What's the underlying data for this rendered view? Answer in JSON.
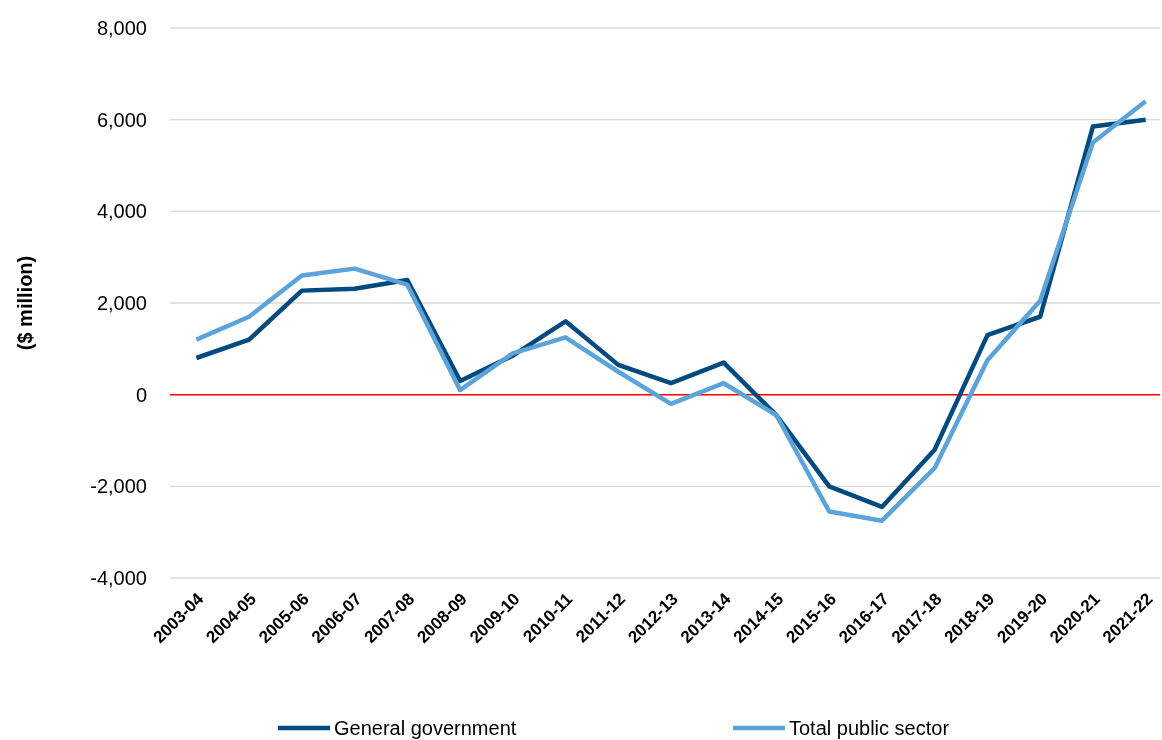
{
  "chart_data": {
    "type": "line",
    "ylabel": "($ million)",
    "categories": [
      "2003-04",
      "2004-05",
      "2005-06",
      "2006-07",
      "2007-08",
      "2008-09",
      "2009-10",
      "2010-11",
      "2011-12",
      "2012-13",
      "2013-14",
      "2014-15",
      "2015-16",
      "2016-17",
      "2017-18",
      "2018-19",
      "2019-20",
      "2020-21",
      "2021-22"
    ],
    "series": [
      {
        "name": "General government",
        "color": "#004a7f",
        "values": [
          800,
          1200,
          2270,
          2310,
          2500,
          300,
          850,
          1600,
          650,
          250,
          700,
          -450,
          -2000,
          -2450,
          -1200,
          1300,
          1700,
          5850,
          6000
        ]
      },
      {
        "name": "Total public sector",
        "color": "#5ba3d9",
        "values": [
          1200,
          1700,
          2600,
          2750,
          2400,
          100,
          900,
          1250,
          500,
          -200,
          250,
          -450,
          -2550,
          -2750,
          -1600,
          750,
          2050,
          5500,
          6400
        ]
      }
    ],
    "ylim": [
      -4000,
      8000
    ],
    "yticks": [
      {
        "value": -4000,
        "label": "-4,000"
      },
      {
        "value": -2000,
        "label": "-2,000"
      },
      0,
      {
        "value": 2000,
        "label": "2,000"
      },
      {
        "value": 4000,
        "label": "4,000"
      },
      {
        "value": 6000,
        "label": "6,000"
      },
      {
        "value": 8000,
        "label": "8,000"
      }
    ],
    "grid": "y",
    "legend": "bottom",
    "marker": "none",
    "line_style": "solid",
    "ref_lines": [
      {
        "axis": "y",
        "value": 0,
        "color": "#ff0000"
      }
    ]
  }
}
